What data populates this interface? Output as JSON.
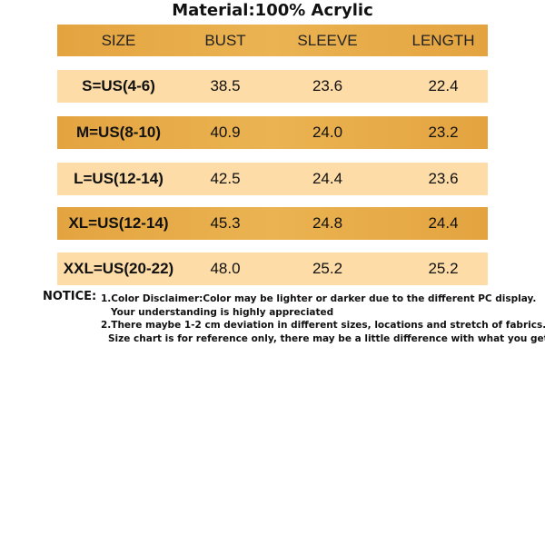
{
  "title": "Material:100% Acrylic",
  "table": {
    "header": [
      "SIZE",
      "BUST",
      "SLEEVE",
      "LENGTH"
    ],
    "rows": [
      [
        "S=US(4-6)",
        "38.5",
        "23.6",
        "22.4"
      ],
      [
        "M=US(8-10)",
        "40.9",
        "24.0",
        "23.2"
      ],
      [
        "L=US(12-14)",
        "42.5",
        "24.4",
        "23.6"
      ],
      [
        "XL=US(12-14)",
        "45.3",
        "24.8",
        "24.4"
      ],
      [
        "XXL=US(20-22)",
        "48.0",
        "25.2",
        "25.2"
      ]
    ]
  },
  "notice": {
    "label": "NOTICE:",
    "lines": [
      "1.Color Disclaimer:Color may be lighter or darker due to the different PC display.",
      "Your understanding is highly appreciated",
      "2.There maybe 1-2 cm deviation in different sizes, locations and stretch of fabrics.",
      "Size chart is for reference only, there may be a little difference with what you get."
    ]
  }
}
